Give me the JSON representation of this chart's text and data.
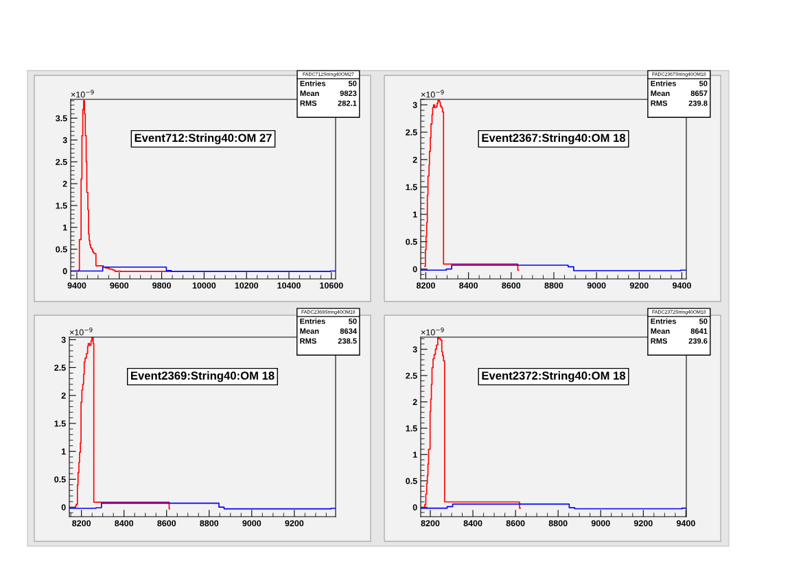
{
  "chart_data": [
    {
      "type": "step",
      "title": "Event712:String40:OM 27",
      "annotations": [
        "×10$^{−9}$",
        "FADC712String40OM27",
        "Entries",
        "50",
        "Mean",
        "9823",
        "RMS",
        "282.1"
      ],
      "xlim": [
        9371,
        10620
      ],
      "ylim": [
        -0.18,
        3.93
      ],
      "xticks": [
        9400,
        9600,
        9800,
        10000,
        10200,
        10400,
        10600
      ],
      "yticks": [
        0,
        0.5,
        1,
        1.5,
        2,
        2.5,
        3,
        3.5
      ],
      "grid": false,
      "legend": false,
      "series": [
        {
          "color": "#ff0000",
          "x": [
            9371,
            9408,
            9412,
            9420,
            9424,
            9428,
            9432,
            9436,
            9440,
            9444,
            9447,
            9452,
            9455,
            9458,
            9461,
            9465,
            9470,
            9474,
            9478,
            9482,
            9490,
            9525,
            9535,
            9545,
            9550,
            9560,
            9570,
            9580,
            9595,
            9605,
            9847
          ],
          "values": [
            0,
            0.02,
            0.72,
            2.11,
            3.1,
            3.7,
            3.9,
            3.6,
            3.1,
            2.5,
            1.8,
            1.4,
            0.85,
            0.7,
            0.6,
            0.53,
            0.5,
            0.45,
            0.42,
            0.4,
            0.12,
            0.09,
            0.07,
            0.09,
            0.05,
            0.04,
            0.02,
            -0.01,
            0,
            -0.01,
            -0.01
          ]
        },
        {
          "color": "#0000ff",
          "x": [
            9371,
            9522,
            9822,
            9845,
            10595,
            10620
          ],
          "values": [
            0,
            0.09,
            0.01,
            -0.01,
            0,
            0
          ]
        }
      ]
    },
    {
      "type": "step",
      "title": "Event2367:String40:OM 18",
      "annotations": [
        "×10$^{−9}$",
        "FADC2367String40OM18",
        "Entries",
        "50",
        "Mean",
        "8657",
        "RMS",
        "239.8"
      ],
      "xlim": [
        8176,
        9421
      ],
      "ylim": [
        -0.18,
        3.1
      ],
      "xticks": [
        8200,
        8400,
        8600,
        8800,
        9000,
        9200,
        9400
      ],
      "yticks": [
        0,
        0.5,
        1,
        1.5,
        2,
        2.5,
        3
      ],
      "grid": false,
      "legend": false,
      "series": [
        {
          "color": "#ff0000",
          "x": [
            8195,
            8198,
            8201,
            8204,
            8207,
            8210,
            8215,
            8217,
            8221,
            8224,
            8229,
            8232,
            8236,
            8241,
            8249,
            8253,
            8257,
            8264,
            8268,
            8273,
            8278,
            8283,
            8631,
            8635
          ],
          "values": [
            0.05,
            0.35,
            0.6,
            0.85,
            1.35,
            1.7,
            1.9,
            2.15,
            2.4,
            2.65,
            2.82,
            2.95,
            3.0,
            2.95,
            2.97,
            3.03,
            3.08,
            3.05,
            2.98,
            2.95,
            2.87,
            0.09,
            -0.02,
            -0.02
          ]
        },
        {
          "color": "#0000ff",
          "x": [
            8176,
            8296,
            8321,
            8867,
            8893,
            9395,
            9421
          ],
          "values": [
            -0.02,
            0,
            0.07,
            0.04,
            -0.03,
            -0.02,
            -0.02
          ]
        }
      ]
    },
    {
      "type": "step",
      "title": "Event2369:String40:OM 18",
      "annotations": [
        "×10$^{−9}$",
        "FADC2369String40OM18",
        "Entries",
        "50",
        "Mean",
        "8634",
        "RMS",
        "238.5"
      ],
      "xlim": [
        8143,
        9394
      ],
      "ylim": [
        -0.17,
        3.045
      ],
      "xticks": [
        8200,
        8400,
        8600,
        8800,
        9000,
        9200
      ],
      "yticks": [
        0,
        0.5,
        1,
        1.5,
        2,
        2.5,
        3
      ],
      "grid": false,
      "legend": false,
      "series": [
        {
          "color": "#ff0000",
          "x": [
            8143,
            8172,
            8175,
            8181,
            8184,
            8188,
            8191,
            8195,
            8198,
            8202,
            8206,
            8210,
            8213,
            8217,
            8223,
            8229,
            8232,
            8238,
            8245,
            8249,
            8255,
            8258,
            8612,
            8614
          ],
          "values": [
            -0.01,
            0.02,
            0.05,
            0.4,
            0.62,
            0.8,
            0.98,
            1.15,
            1.88,
            2.1,
            2.2,
            2.38,
            2.6,
            2.67,
            2.75,
            2.88,
            2.93,
            2.9,
            2.98,
            3.04,
            2.93,
            0.09,
            -0.03,
            -0.03
          ]
        },
        {
          "color": "#0000ff",
          "x": [
            8143,
            8268,
            8294,
            8846,
            8870,
            9373,
            9394
          ],
          "values": [
            -0.02,
            -0.01,
            0.07,
            0,
            -0.03,
            -0.02,
            -0.02
          ]
        }
      ]
    },
    {
      "type": "step",
      "title": "Event2372:String40:OM 18",
      "annotations": [
        "×10$^{−9}$",
        "FADC2372String40OM18",
        "Entries",
        "50",
        "Mean",
        "8641",
        "RMS",
        "239.6"
      ],
      "xlim": [
        8155,
        9402
      ],
      "ylim": [
        -0.18,
        3.23
      ],
      "xticks": [
        8200,
        8400,
        8600,
        8800,
        9000,
        9200,
        9400
      ],
      "yticks": [
        0,
        0.5,
        1,
        1.5,
        2,
        2.5,
        3
      ],
      "grid": false,
      "legend": false,
      "series": [
        {
          "color": "#ff0000",
          "x": [
            8155,
            8170,
            8174,
            8179,
            8183,
            8186,
            8189,
            8192,
            8199,
            8202,
            8205,
            8208,
            8213,
            8218,
            8224,
            8229,
            8235,
            8240,
            8249,
            8254,
            8258,
            8262,
            8267,
            8619,
            8623
          ],
          "values": [
            -0.01,
            0,
            0.05,
            0.25,
            0.45,
            0.6,
            0.82,
            1.1,
            1.82,
            2.05,
            2.33,
            2.65,
            2.82,
            2.9,
            3.0,
            3.08,
            3.22,
            3.2,
            3.17,
            2.95,
            2.88,
            2.78,
            0.1,
            -0.02,
            -0.02
          ]
        },
        {
          "color": "#0000ff",
          "x": [
            8155,
            8279,
            8305,
            8852,
            8878,
            9381,
            9402
          ],
          "values": [
            -0.02,
            0.01,
            0.06,
            -0.01,
            -0.03,
            -0.02,
            -0.02
          ]
        }
      ]
    }
  ]
}
